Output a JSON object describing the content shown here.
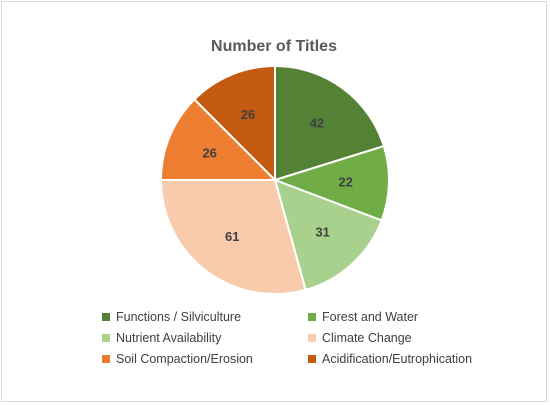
{
  "chart_data": {
    "type": "pie",
    "title": "Number of Titles",
    "slices": [
      {
        "name": "Functions / Silviculture",
        "value": 42,
        "color": "#548235"
      },
      {
        "name": "Forest and Water",
        "value": 22,
        "color": "#70ad47"
      },
      {
        "name": "Nutrient Availability",
        "value": 31,
        "color": "#a9d18e"
      },
      {
        "name": "Climate Change",
        "value": 61,
        "color": "#f8cbad"
      },
      {
        "name": "Soil Compaction/Erosion",
        "value": 26,
        "color": "#ed7d31"
      },
      {
        "name": "Acidification/Eutrophication",
        "value": 26,
        "color": "#c55a11"
      }
    ],
    "legend_position": "bottom",
    "data_labels": true
  }
}
